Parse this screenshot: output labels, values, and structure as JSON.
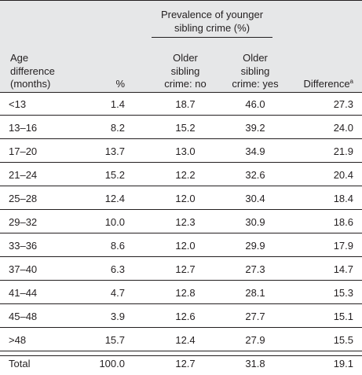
{
  "header": {
    "spanner": "Prevalence of younger sibling crime (%)",
    "age_col": [
      "Age",
      "difference",
      "(months)"
    ],
    "pct_col": "%",
    "older_no": [
      "Older",
      "sibling",
      "crime: no"
    ],
    "older_yes": [
      "Older",
      "sibling",
      "crime: yes"
    ],
    "difference": "Difference",
    "difference_note": "a"
  },
  "rows": [
    {
      "age": "<13",
      "pct": "1.4",
      "no": "18.7",
      "yes": "46.0",
      "diff": "27.3"
    },
    {
      "age": "13–16",
      "pct": "8.2",
      "no": "15.2",
      "yes": "39.2",
      "diff": "24.0"
    },
    {
      "age": "17–20",
      "pct": "13.7",
      "no": "13.0",
      "yes": "34.9",
      "diff": "21.9"
    },
    {
      "age": "21–24",
      "pct": "15.2",
      "no": "12.2",
      "yes": "32.6",
      "diff": "20.4"
    },
    {
      "age": "25–28",
      "pct": "12.4",
      "no": "12.0",
      "yes": "30.4",
      "diff": "18.4"
    },
    {
      "age": "29–32",
      "pct": "10.0",
      "no": "12.3",
      "yes": "30.9",
      "diff": "18.6"
    },
    {
      "age": "33–36",
      "pct": "8.6",
      "no": "12.0",
      "yes": "29.9",
      "diff": "17.9"
    },
    {
      "age": "37–40",
      "pct": "6.3",
      "no": "12.7",
      "yes": "27.3",
      "diff": "14.7"
    },
    {
      "age": "41–44",
      "pct": "4.7",
      "no": "12.8",
      "yes": "28.1",
      "diff": "15.3"
    },
    {
      "age": "45–48",
      "pct": "3.9",
      "no": "12.6",
      "yes": "27.7",
      "diff": "15.1"
    },
    {
      "age": ">48",
      "pct": "15.7",
      "no": "12.4",
      "yes": "27.9",
      "diff": "15.5"
    },
    {
      "age": "Total",
      "pct": "100.0",
      "no": "12.7",
      "yes": "31.8",
      "diff": "19.1"
    }
  ]
}
